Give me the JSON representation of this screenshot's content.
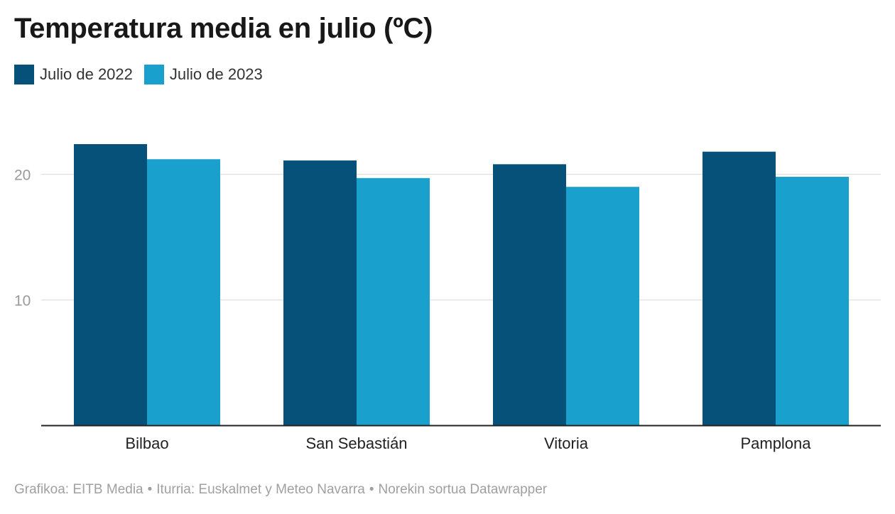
{
  "title": "Temperatura media en julio (ºC)",
  "legend": [
    {
      "label": "Julio de 2022",
      "color": "#06517a"
    },
    {
      "label": "Julio de 2023",
      "color": "#19a0cc"
    }
  ],
  "footer": {
    "graphic": "Grafikoa: EITB Media",
    "source": "Iturria: Euskalmet y Meteo Navarra",
    "tool": "Norekin sortua Datawrapper",
    "separator": "•"
  },
  "chart_data": {
    "type": "bar",
    "title": "Temperatura media en julio (ºC)",
    "xlabel": "",
    "ylabel": "",
    "categories": [
      "Bilbao",
      "San Sebastián",
      "Vitoria",
      "Pamplona"
    ],
    "series": [
      {
        "name": "Julio de 2022",
        "color": "#06517a",
        "values": [
          22.4,
          21.1,
          20.8,
          21.8
        ]
      },
      {
        "name": "Julio de 2023",
        "color": "#19a0cc",
        "values": [
          21.2,
          19.7,
          19.0,
          19.8
        ]
      }
    ],
    "ylim": [
      0,
      25
    ],
    "yticks": [
      10,
      20
    ],
    "grid": true,
    "legend_position": "top-left"
  }
}
